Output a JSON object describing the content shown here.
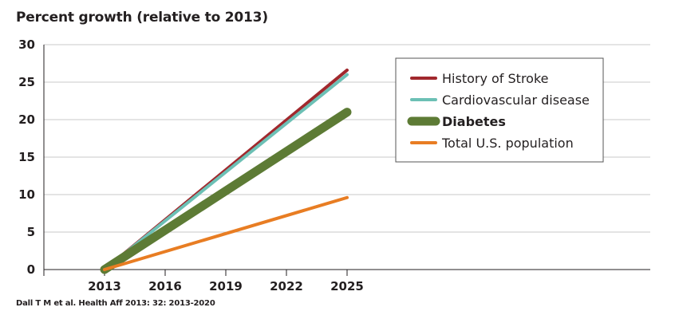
{
  "chart_data": {
    "type": "line",
    "title": "Percent growth (relative to 2013)",
    "xlabel": "",
    "ylabel": "",
    "x": [
      2013,
      2025
    ],
    "x_ticks": [
      2013,
      2016,
      2019,
      2022,
      2025
    ],
    "y_ticks": [
      0,
      5,
      10,
      15,
      20,
      25,
      30
    ],
    "xlim": [
      2010,
      2040
    ],
    "ylim": [
      0,
      30
    ],
    "grid": true,
    "legend_position": "top-right",
    "series": [
      {
        "name": "History of Stroke",
        "values": [
          0,
          26.6
        ],
        "color": "#a1282d",
        "width": 4,
        "bold": false
      },
      {
        "name": "Cardiovascular disease",
        "values": [
          0,
          26.0
        ],
        "color": "#6cc0b5",
        "width": 4,
        "bold": false
      },
      {
        "name": "Diabetes",
        "values": [
          0,
          21.0
        ],
        "color": "#5d7b35",
        "width": 11,
        "bold": true
      },
      {
        "name": "Total U.S. population",
        "values": [
          0,
          9.6
        ],
        "color": "#e87d23",
        "width": 4,
        "bold": false
      }
    ],
    "source": "Dall T M et al. Health Aff 2013: 32: 2013-2020"
  }
}
